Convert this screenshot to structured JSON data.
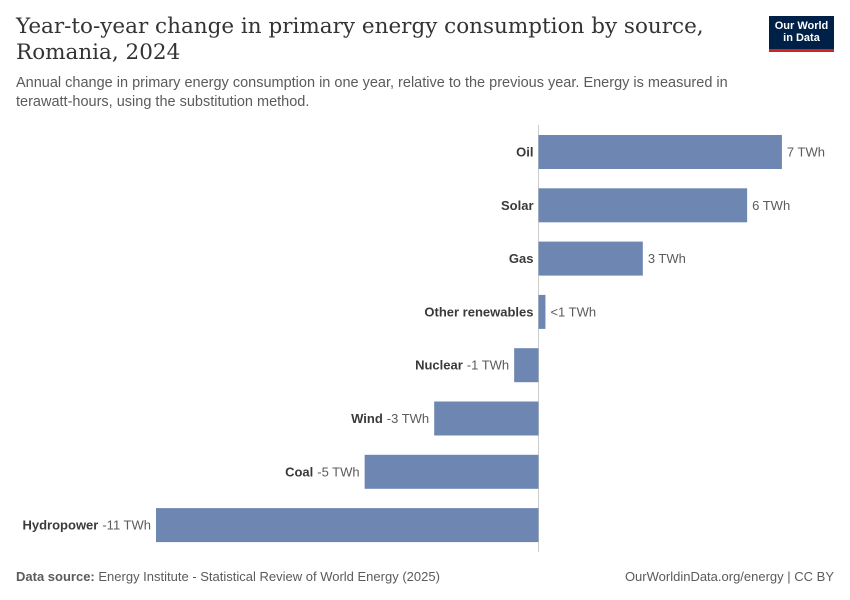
{
  "title": "Year-to-year change in primary energy consumption by source, Romania, 2024",
  "subtitle": "Annual change in primary energy consumption in one year, relative to the previous year. Energy is measured in terawatt-hours, using the substitution method.",
  "logo": {
    "line1": "Our World",
    "line2": "in Data"
  },
  "footer": {
    "source_label": "Data source:",
    "source_text": "Energy Institute - Statistical Review of World Energy (2025)",
    "right": "OurWorldinData.org/energy | CC BY"
  },
  "colors": {
    "bar": "#6d87b2",
    "axis": "#cccccc",
    "logo_bg": "#002147",
    "logo_accent": "#ce261e"
  },
  "chart_data": {
    "type": "bar",
    "orientation": "horizontal",
    "unit": "TWh",
    "categories": [
      "Oil",
      "Solar",
      "Gas",
      "Other renewables",
      "Nuclear",
      "Wind",
      "Coal",
      "Hydropower"
    ],
    "values": [
      7,
      6,
      3,
      0.2,
      -0.7,
      -3,
      -5,
      -11
    ],
    "value_labels": [
      "7 TWh",
      "6 TWh",
      "3 TWh",
      "<1 TWh",
      "-1 TWh",
      "-3 TWh",
      "-5 TWh",
      "-11 TWh"
    ],
    "xlim": [
      -11,
      7
    ],
    "grid": false
  }
}
